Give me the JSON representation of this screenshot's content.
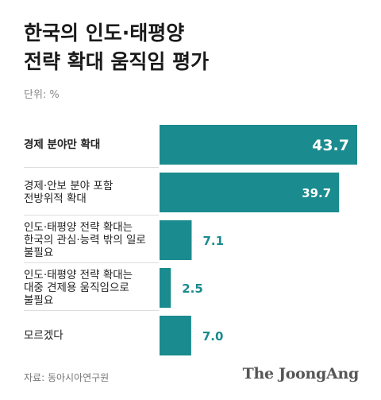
{
  "title": "한국의 인도·태평양\n전략 확대 움직임 평가",
  "unit": "단위: %",
  "source": "자료: 동아시아연구원",
  "logo": "The JoongAng",
  "colors": {
    "bar": "#1a8b8e",
    "label_inside": "#ffffff",
    "label_outside": "#1a8b8e"
  },
  "chart_data": {
    "type": "bar",
    "orientation": "horizontal",
    "categories": [
      "경제 분야만 확대",
      "경제·안보 분야 포함\n전방위적 확대",
      "인도·태평양 전략 확대는\n한국의 관심·능력 밖의 일로\n불필요",
      "인도·태평양 전략 확대는\n대중 견제용 움직임으로\n불필요",
      "모르겠다"
    ],
    "values": [
      43.7,
      39.7,
      7.1,
      2.5,
      7.0
    ],
    "value_labels": [
      "43.7",
      "39.7",
      "7.1",
      "2.5",
      "7.0"
    ],
    "highlight_index": 0,
    "xlim": [
      0,
      47
    ],
    "grid": false,
    "legend": "none"
  }
}
